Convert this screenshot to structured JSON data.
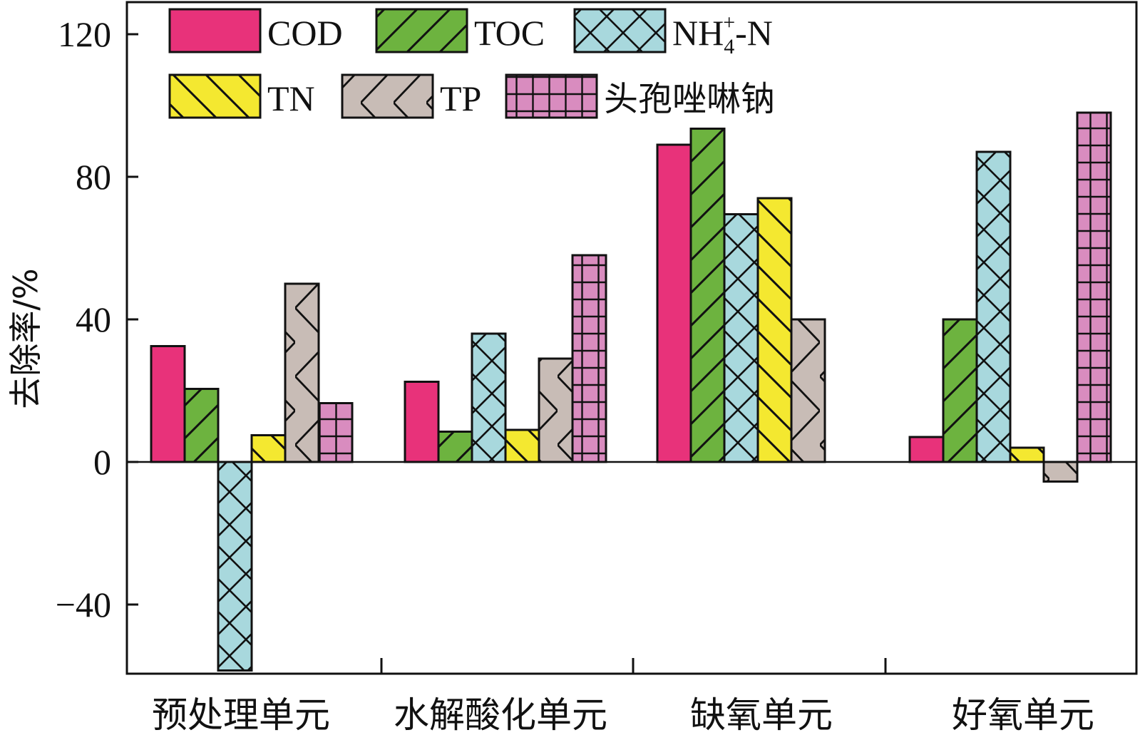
{
  "chart_data": {
    "type": "bar",
    "title": "",
    "xlabel": "",
    "ylabel": "去除率/%",
    "ylim": [
      -60,
      130
    ],
    "yticks": [
      -40,
      0,
      40,
      80,
      120
    ],
    "ytick_labels": [
      "−40",
      "0",
      "40",
      "80",
      "120"
    ],
    "grid": false,
    "legend_position": "top",
    "categories": [
      "预处理单元",
      "水解酸化单元",
      "缺氧单元",
      "好氧单元"
    ],
    "series": [
      {
        "name": "COD",
        "values": [
          32.5,
          22.5,
          89,
          7
        ],
        "color": "#e8327a",
        "pattern": "solid"
      },
      {
        "name": "TOC",
        "values": [
          20.5,
          8.5,
          93.5,
          40
        ],
        "color": "#6db33f",
        "pattern": "diagonal"
      },
      {
        "name": "NH4+-N",
        "values": [
          -58.5,
          36,
          69.5,
          87
        ],
        "color": "#a8d8dd",
        "pattern": "crosshatch"
      },
      {
        "name": "TN",
        "values": [
          7.5,
          9,
          74,
          4
        ],
        "color": "#f4e830",
        "pattern": "back-diagonal"
      },
      {
        "name": "TP",
        "values": [
          50,
          29,
          40,
          -5.5
        ],
        "color": "#c8bcb6",
        "pattern": "zigzag"
      },
      {
        "name": "头孢唑啉钠",
        "values": [
          16.5,
          58,
          null,
          98
        ],
        "color": "#d98cbf",
        "pattern": "grid"
      }
    ]
  }
}
